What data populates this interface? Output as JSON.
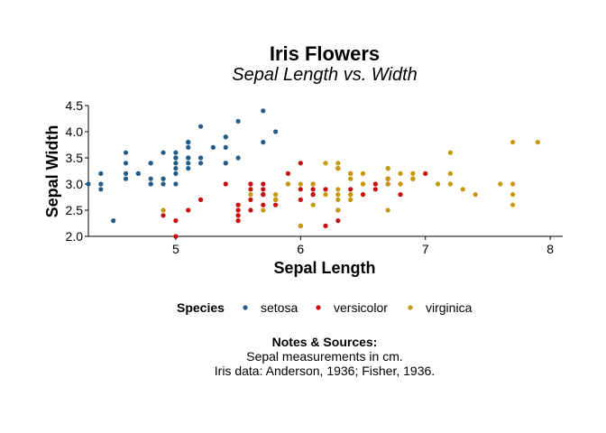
{
  "chart_data": {
    "type": "scatter",
    "title": "Iris Flowers",
    "subtitle": "Sepal Length vs. Width",
    "xlabel": "Sepal Length",
    "ylabel": "Sepal Width",
    "xlim": [
      4.3,
      8.1
    ],
    "ylim": [
      2.0,
      4.5
    ],
    "x_ticks": [
      5,
      6,
      7,
      8
    ],
    "x_tick_labels": [
      "5",
      "6",
      "7",
      "8"
    ],
    "y_ticks": [
      2.0,
      2.5,
      3.0,
      3.5,
      4.0,
      4.5
    ],
    "y_tick_labels": [
      "2.0",
      "2.5",
      "3.0",
      "3.5",
      "4.0",
      "4.5"
    ],
    "grid": false,
    "legend": {
      "title": "Species",
      "position": "bottom"
    },
    "series": [
      {
        "name": "setosa",
        "color": "#255c85",
        "points": [
          [
            5.1,
            3.5
          ],
          [
            4.9,
            3.0
          ],
          [
            4.7,
            3.2
          ],
          [
            4.6,
            3.1
          ],
          [
            5.0,
            3.6
          ],
          [
            5.4,
            3.9
          ],
          [
            4.6,
            3.4
          ],
          [
            5.0,
            3.4
          ],
          [
            4.4,
            2.9
          ],
          [
            4.9,
            3.1
          ],
          [
            5.4,
            3.7
          ],
          [
            4.8,
            3.4
          ],
          [
            4.8,
            3.0
          ],
          [
            4.3,
            3.0
          ],
          [
            5.8,
            4.0
          ],
          [
            5.7,
            4.4
          ],
          [
            5.4,
            3.9
          ],
          [
            5.1,
            3.5
          ],
          [
            5.7,
            3.8
          ],
          [
            5.1,
            3.8
          ],
          [
            5.4,
            3.4
          ],
          [
            5.1,
            3.7
          ],
          [
            4.6,
            3.6
          ],
          [
            5.1,
            3.3
          ],
          [
            4.8,
            3.4
          ],
          [
            5.0,
            3.0
          ],
          [
            5.0,
            3.4
          ],
          [
            5.2,
            3.5
          ],
          [
            5.2,
            3.4
          ],
          [
            4.7,
            3.2
          ],
          [
            4.8,
            3.1
          ],
          [
            5.4,
            3.4
          ],
          [
            5.2,
            4.1
          ],
          [
            5.5,
            4.2
          ],
          [
            4.9,
            3.1
          ],
          [
            5.0,
            3.2
          ],
          [
            5.5,
            3.5
          ],
          [
            4.9,
            3.6
          ],
          [
            4.4,
            3.0
          ],
          [
            5.1,
            3.4
          ],
          [
            5.0,
            3.5
          ],
          [
            4.5,
            2.3
          ],
          [
            4.4,
            3.2
          ],
          [
            5.0,
            3.5
          ],
          [
            5.1,
            3.8
          ],
          [
            4.8,
            3.0
          ],
          [
            5.1,
            3.8
          ],
          [
            4.6,
            3.2
          ],
          [
            5.3,
            3.7
          ],
          [
            5.0,
            3.3
          ]
        ]
      },
      {
        "name": "versicolor",
        "color": "#c90c0c",
        "points": [
          [
            7.0,
            3.2
          ],
          [
            6.4,
            3.2
          ],
          [
            6.9,
            3.1
          ],
          [
            5.5,
            2.3
          ],
          [
            6.5,
            2.8
          ],
          [
            5.7,
            2.8
          ],
          [
            6.3,
            3.3
          ],
          [
            4.9,
            2.4
          ],
          [
            6.6,
            2.9
          ],
          [
            5.2,
            2.7
          ],
          [
            5.0,
            2.0
          ],
          [
            5.9,
            3.0
          ],
          [
            6.0,
            2.2
          ],
          [
            6.1,
            2.9
          ],
          [
            5.6,
            2.9
          ],
          [
            6.7,
            3.1
          ],
          [
            5.6,
            3.0
          ],
          [
            5.8,
            2.7
          ],
          [
            6.2,
            2.2
          ],
          [
            5.6,
            2.5
          ],
          [
            5.9,
            3.2
          ],
          [
            6.1,
            2.8
          ],
          [
            6.3,
            2.5
          ],
          [
            6.1,
            2.8
          ],
          [
            6.4,
            2.9
          ],
          [
            6.6,
            3.0
          ],
          [
            6.8,
            2.8
          ],
          [
            6.7,
            3.0
          ],
          [
            6.0,
            2.9
          ],
          [
            5.7,
            2.6
          ],
          [
            5.5,
            2.4
          ],
          [
            5.5,
            2.4
          ],
          [
            5.8,
            2.7
          ],
          [
            6.0,
            2.7
          ],
          [
            5.4,
            3.0
          ],
          [
            6.0,
            3.4
          ],
          [
            6.7,
            3.1
          ],
          [
            6.3,
            2.3
          ],
          [
            5.6,
            3.0
          ],
          [
            5.5,
            2.5
          ],
          [
            5.5,
            2.6
          ],
          [
            6.1,
            3.0
          ],
          [
            5.8,
            2.6
          ],
          [
            5.0,
            2.3
          ],
          [
            5.6,
            2.7
          ],
          [
            5.7,
            3.0
          ],
          [
            5.7,
            2.9
          ],
          [
            6.2,
            2.9
          ],
          [
            5.1,
            2.5
          ],
          [
            5.7,
            2.8
          ]
        ]
      },
      {
        "name": "virginica",
        "color": "#c8980a",
        "points": [
          [
            6.3,
            3.3
          ],
          [
            5.8,
            2.7
          ],
          [
            7.1,
            3.0
          ],
          [
            6.3,
            2.9
          ],
          [
            6.5,
            3.0
          ],
          [
            7.6,
            3.0
          ],
          [
            4.9,
            2.5
          ],
          [
            7.3,
            2.9
          ],
          [
            6.7,
            2.5
          ],
          [
            7.2,
            3.6
          ],
          [
            6.5,
            3.2
          ],
          [
            6.4,
            2.7
          ],
          [
            6.8,
            3.0
          ],
          [
            5.7,
            2.5
          ],
          [
            5.8,
            2.8
          ],
          [
            6.4,
            3.2
          ],
          [
            6.5,
            3.0
          ],
          [
            7.7,
            3.8
          ],
          [
            7.7,
            2.6
          ],
          [
            6.0,
            2.2
          ],
          [
            6.9,
            3.2
          ],
          [
            5.6,
            2.8
          ],
          [
            7.7,
            2.8
          ],
          [
            6.3,
            2.7
          ],
          [
            6.7,
            3.3
          ],
          [
            7.2,
            3.2
          ],
          [
            6.2,
            2.8
          ],
          [
            6.1,
            3.0
          ],
          [
            6.4,
            2.8
          ],
          [
            7.2,
            3.0
          ],
          [
            7.4,
            2.8
          ],
          [
            7.9,
            3.8
          ],
          [
            6.4,
            2.8
          ],
          [
            6.3,
            2.8
          ],
          [
            6.1,
            2.6
          ],
          [
            7.7,
            3.0
          ],
          [
            6.3,
            3.4
          ],
          [
            6.4,
            3.1
          ],
          [
            6.0,
            3.0
          ],
          [
            6.9,
            3.1
          ],
          [
            6.7,
            3.1
          ],
          [
            6.9,
            3.1
          ],
          [
            5.8,
            2.7
          ],
          [
            6.8,
            3.2
          ],
          [
            6.7,
            3.3
          ],
          [
            6.7,
            3.0
          ],
          [
            6.3,
            2.5
          ],
          [
            6.5,
            3.0
          ],
          [
            6.2,
            3.4
          ],
          [
            5.9,
            3.0
          ]
        ]
      }
    ]
  },
  "notes": {
    "title": "Notes & Sources:",
    "lines": [
      "Sepal measurements in cm.",
      "Iris data: Anderson, 1936; Fisher, 1936."
    ]
  }
}
